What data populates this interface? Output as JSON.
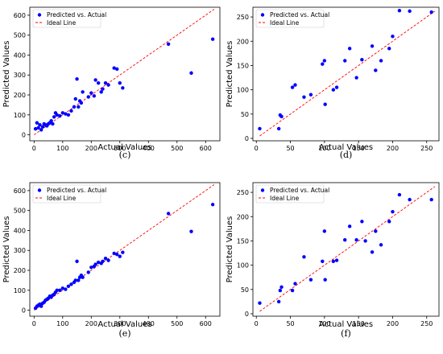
{
  "chart_data": [
    {
      "type": "scatter",
      "caption": "(c)",
      "xlabel": "Actual Values",
      "ylabel": "Predicted Values",
      "xlim": [
        -15,
        650
      ],
      "ylim": [
        -30,
        640
      ],
      "xticks": [
        0,
        100,
        200,
        300,
        400,
        500,
        600
      ],
      "yticks": [
        0,
        100,
        200,
        300,
        400,
        500,
        600
      ],
      "legend": [
        "Predicted vs. Actual",
        "Ideal Line"
      ],
      "legend_position": "top-left",
      "grid": false,
      "ideal_line": [
        [
          0,
          0
        ],
        [
          630,
          630
        ]
      ],
      "points": [
        [
          5,
          30
        ],
        [
          10,
          60
        ],
        [
          15,
          35
        ],
        [
          20,
          50
        ],
        [
          25,
          25
        ],
        [
          30,
          40
        ],
        [
          35,
          55
        ],
        [
          40,
          50
        ],
        [
          45,
          45
        ],
        [
          50,
          55
        ],
        [
          55,
          60
        ],
        [
          60,
          70
        ],
        [
          65,
          55
        ],
        [
          70,
          90
        ],
        [
          75,
          110
        ],
        [
          80,
          100
        ],
        [
          90,
          95
        ],
        [
          100,
          110
        ],
        [
          110,
          105
        ],
        [
          120,
          100
        ],
        [
          130,
          120
        ],
        [
          140,
          140
        ],
        [
          145,
          180
        ],
        [
          150,
          280
        ],
        [
          155,
          140
        ],
        [
          160,
          170
        ],
        [
          165,
          160
        ],
        [
          170,
          215
        ],
        [
          190,
          190
        ],
        [
          200,
          210
        ],
        [
          210,
          195
        ],
        [
          215,
          275
        ],
        [
          225,
          260
        ],
        [
          235,
          215
        ],
        [
          240,
          230
        ],
        [
          250,
          260
        ],
        [
          260,
          250
        ],
        [
          280,
          335
        ],
        [
          290,
          330
        ],
        [
          300,
          260
        ],
        [
          310,
          235
        ],
        [
          470,
          455
        ],
        [
          550,
          310
        ],
        [
          625,
          480
        ]
      ],
      "color": "#0000ff",
      "line_color": "#ff0000"
    },
    {
      "type": "scatter",
      "caption": "(d)",
      "xlabel": "Actual Values",
      "ylabel": "Predicted Values",
      "xlim": [
        -5,
        268
      ],
      "ylim": [
        -5,
        270
      ],
      "xticks": [
        0,
        50,
        100,
        150,
        200,
        250
      ],
      "yticks": [
        0,
        50,
        100,
        150,
        200,
        250
      ],
      "legend": [
        "Predicted vs. Actual",
        "Ideal Line"
      ],
      "legend_position": "top-left",
      "grid": false,
      "ideal_line": [
        [
          5,
          5
        ],
        [
          262,
          262
        ]
      ],
      "points": [
        [
          5,
          20
        ],
        [
          33,
          20
        ],
        [
          35,
          48
        ],
        [
          37,
          45
        ],
        [
          53,
          105
        ],
        [
          57,
          110
        ],
        [
          70,
          85
        ],
        [
          80,
          90
        ],
        [
          97,
          153
        ],
        [
          100,
          160
        ],
        [
          101,
          70
        ],
        [
          113,
          100
        ],
        [
          118,
          105
        ],
        [
          130,
          160
        ],
        [
          137,
          185
        ],
        [
          147,
          125
        ],
        [
          155,
          162
        ],
        [
          170,
          190
        ],
        [
          175,
          140
        ],
        [
          183,
          160
        ],
        [
          195,
          185
        ],
        [
          200,
          210
        ],
        [
          210,
          263
        ],
        [
          225,
          262
        ],
        [
          257,
          260
        ]
      ],
      "color": "#0000ff",
      "line_color": "#ff0000"
    },
    {
      "type": "scatter",
      "caption": "(e)",
      "xlabel": "Actual Values",
      "ylabel": "Predicted Values",
      "xlim": [
        -15,
        650
      ],
      "ylim": [
        -30,
        640
      ],
      "xticks": [
        0,
        100,
        200,
        300,
        400,
        500,
        600
      ],
      "yticks": [
        0,
        100,
        200,
        300,
        400,
        500,
        600
      ],
      "legend": [
        "Predicted vs. Actual",
        "Ideal Line"
      ],
      "legend_position": "top-left",
      "grid": false,
      "ideal_line": [
        [
          0,
          0
        ],
        [
          630,
          630
        ]
      ],
      "points": [
        [
          5,
          10
        ],
        [
          10,
          20
        ],
        [
          15,
          25
        ],
        [
          20,
          30
        ],
        [
          25,
          20
        ],
        [
          30,
          35
        ],
        [
          35,
          40
        ],
        [
          40,
          50
        ],
        [
          45,
          55
        ],
        [
          50,
          60
        ],
        [
          55,
          70
        ],
        [
          60,
          65
        ],
        [
          65,
          75
        ],
        [
          70,
          80
        ],
        [
          75,
          90
        ],
        [
          80,
          100
        ],
        [
          90,
          100
        ],
        [
          100,
          110
        ],
        [
          110,
          105
        ],
        [
          120,
          120
        ],
        [
          130,
          130
        ],
        [
          140,
          140
        ],
        [
          145,
          150
        ],
        [
          150,
          245
        ],
        [
          155,
          150
        ],
        [
          160,
          165
        ],
        [
          165,
          175
        ],
        [
          170,
          165
        ],
        [
          190,
          190
        ],
        [
          200,
          215
        ],
        [
          210,
          220
        ],
        [
          215,
          230
        ],
        [
          225,
          240
        ],
        [
          235,
          235
        ],
        [
          240,
          245
        ],
        [
          250,
          260
        ],
        [
          260,
          250
        ],
        [
          280,
          285
        ],
        [
          290,
          280
        ],
        [
          300,
          270
        ],
        [
          310,
          290
        ],
        [
          470,
          485
        ],
        [
          550,
          395
        ],
        [
          625,
          530
        ]
      ],
      "color": "#0000ff",
      "line_color": "#ff0000"
    },
    {
      "type": "scatter",
      "caption": "(f)",
      "xlabel": "Actual Values",
      "ylabel": "Predicted Values",
      "xlim": [
        -5,
        268
      ],
      "ylim": [
        -5,
        270
      ],
      "xticks": [
        0,
        50,
        100,
        150,
        200,
        250
      ],
      "yticks": [
        0,
        50,
        100,
        150,
        200,
        250
      ],
      "legend": [
        "Predicted vs. Actual",
        "Ideal Line"
      ],
      "legend_position": "top-left",
      "grid": false,
      "ideal_line": [
        [
          5,
          5
        ],
        [
          262,
          262
        ]
      ],
      "points": [
        [
          5,
          22
        ],
        [
          33,
          25
        ],
        [
          35,
          48
        ],
        [
          37,
          55
        ],
        [
          53,
          48
        ],
        [
          57,
          62
        ],
        [
          70,
          117
        ],
        [
          80,
          70
        ],
        [
          97,
          108
        ],
        [
          100,
          170
        ],
        [
          101,
          70
        ],
        [
          113,
          108
        ],
        [
          118,
          110
        ],
        [
          130,
          152
        ],
        [
          137,
          180
        ],
        [
          147,
          152
        ],
        [
          155,
          190
        ],
        [
          160,
          150
        ],
        [
          170,
          127
        ],
        [
          175,
          170
        ],
        [
          183,
          142
        ],
        [
          195,
          190
        ],
        [
          200,
          210
        ],
        [
          210,
          245
        ],
        [
          225,
          235
        ],
        [
          257,
          235
        ]
      ],
      "color": "#0000ff",
      "line_color": "#ff0000"
    }
  ]
}
